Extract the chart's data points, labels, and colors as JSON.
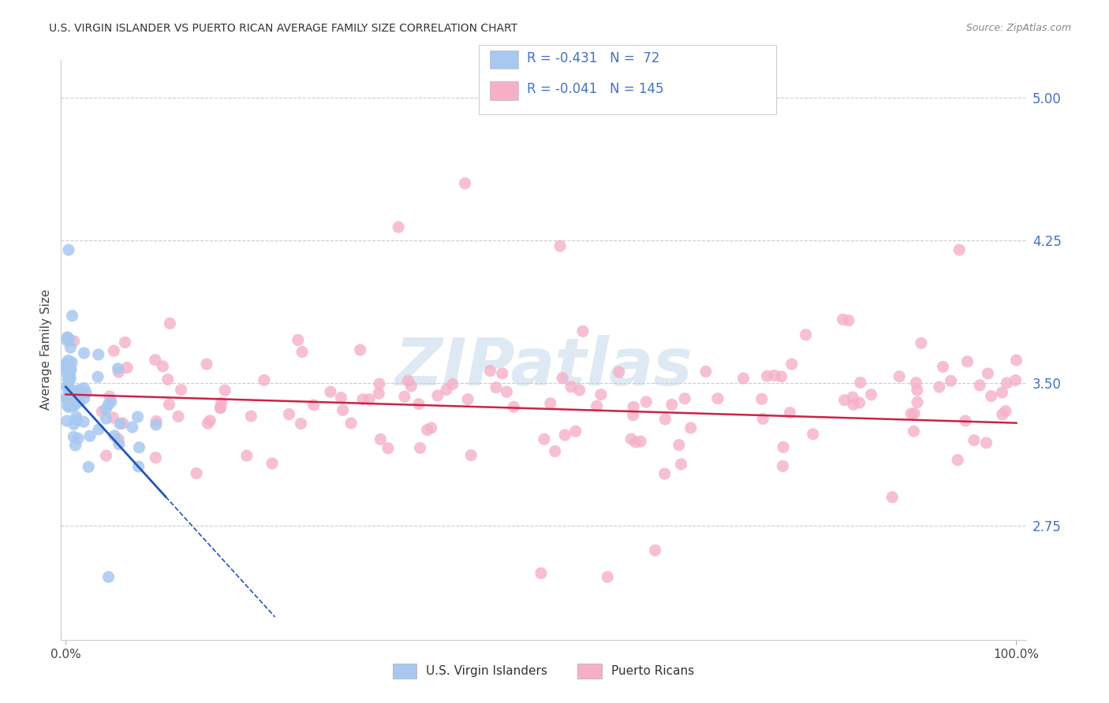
{
  "title": "U.S. VIRGIN ISLANDER VS PUERTO RICAN AVERAGE FAMILY SIZE CORRELATION CHART",
  "source": "Source: ZipAtlas.com",
  "ylabel": "Average Family Size",
  "yticks": [
    2.75,
    3.5,
    4.25,
    5.0
  ],
  "ylim": [
    2.15,
    5.2
  ],
  "xlim": [
    -0.5,
    101.0
  ],
  "legend_entries": [
    {
      "label_r": "R = -0.431",
      "label_n": "N =  72",
      "color": "#a8c8f0"
    },
    {
      "label_r": "R = -0.041",
      "label_n": "N = 145",
      "color": "#f5b0c8"
    }
  ],
  "legend_bottom": [
    "U.S. Virgin Islanders",
    "Puerto Ricans"
  ],
  "blue_scatter_color": "#a8c8f0",
  "pink_scatter_color": "#f5b0c8",
  "blue_line_color": "#2255bb",
  "pink_line_color": "#cc2244",
  "watermark": "ZIPatlas",
  "blue_line_intercept": 3.48,
  "blue_line_slope": -0.055,
  "blue_line_solid_end": 10.5,
  "blue_line_dash_end": 22.0,
  "pink_line_intercept": 3.44,
  "pink_line_slope": -0.0015
}
